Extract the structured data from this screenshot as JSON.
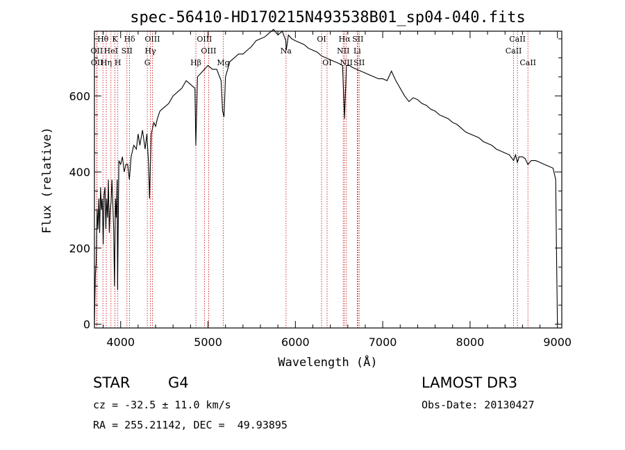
{
  "chart_data": {
    "type": "line",
    "title": "spec-56410-HD170215N493538B01_sp04-040.fits",
    "xlabel": "Wavelength (Å)",
    "ylabel": "Flux (relative)",
    "xlim": [
      3700,
      9050
    ],
    "ylim": [
      -10,
      770
    ],
    "xticks": [
      4000,
      5000,
      6000,
      7000,
      8000,
      9000
    ],
    "yticks": [
      0,
      200,
      400,
      600
    ],
    "series": [
      {
        "name": "spectrum",
        "points": [
          [
            3700,
            0
          ],
          [
            3710,
            130
          ],
          [
            3720,
            160
          ],
          [
            3730,
            300
          ],
          [
            3740,
            250
          ],
          [
            3750,
            330
          ],
          [
            3760,
            240
          ],
          [
            3770,
            360
          ],
          [
            3780,
            300
          ],
          [
            3790,
            330
          ],
          [
            3800,
            210
          ],
          [
            3810,
            340
          ],
          [
            3820,
            360
          ],
          [
            3830,
            250
          ],
          [
            3840,
            330
          ],
          [
            3850,
            280
          ],
          [
            3860,
            380
          ],
          [
            3870,
            240
          ],
          [
            3880,
            300
          ],
          [
            3890,
            320
          ],
          [
            3900,
            380
          ],
          [
            3910,
            320
          ],
          [
            3920,
            250
          ],
          [
            3930,
            100
          ],
          [
            3940,
            330
          ],
          [
            3950,
            280
          ],
          [
            3960,
            380
          ],
          [
            3965,
            90
          ],
          [
            3980,
            430
          ],
          [
            4000,
            420
          ],
          [
            4020,
            440
          ],
          [
            4040,
            400
          ],
          [
            4060,
            420
          ],
          [
            4080,
            420
          ],
          [
            4100,
            380
          ],
          [
            4120,
            440
          ],
          [
            4150,
            470
          ],
          [
            4180,
            460
          ],
          [
            4200,
            500
          ],
          [
            4220,
            470
          ],
          [
            4250,
            510
          ],
          [
            4280,
            460
          ],
          [
            4300,
            500
          ],
          [
            4320,
            420
          ],
          [
            4330,
            330
          ],
          [
            4350,
            500
          ],
          [
            4380,
            530
          ],
          [
            4400,
            520
          ],
          [
            4420,
            540
          ],
          [
            4450,
            560
          ],
          [
            4500,
            570
          ],
          [
            4550,
            580
          ],
          [
            4600,
            600
          ],
          [
            4650,
            610
          ],
          [
            4700,
            620
          ],
          [
            4750,
            640
          ],
          [
            4800,
            630
          ],
          [
            4850,
            620
          ],
          [
            4861,
            470
          ],
          [
            4880,
            650
          ],
          [
            4920,
            660
          ],
          [
            4960,
            670
          ],
          [
            5000,
            680
          ],
          [
            5050,
            670
          ],
          [
            5100,
            670
          ],
          [
            5150,
            640
          ],
          [
            5167,
            560
          ],
          [
            5183,
            545
          ],
          [
            5200,
            650
          ],
          [
            5250,
            690
          ],
          [
            5300,
            700
          ],
          [
            5350,
            710
          ],
          [
            5400,
            710
          ],
          [
            5450,
            720
          ],
          [
            5500,
            730
          ],
          [
            5550,
            745
          ],
          [
            5600,
            750
          ],
          [
            5650,
            755
          ],
          [
            5700,
            765
          ],
          [
            5750,
            775
          ],
          [
            5800,
            760
          ],
          [
            5850,
            770
          ],
          [
            5890,
            745
          ],
          [
            5896,
            720
          ],
          [
            5920,
            760
          ],
          [
            5960,
            750
          ],
          [
            6000,
            745
          ],
          [
            6050,
            740
          ],
          [
            6100,
            735
          ],
          [
            6150,
            725
          ],
          [
            6200,
            720
          ],
          [
            6250,
            715
          ],
          [
            6300,
            705
          ],
          [
            6350,
            700
          ],
          [
            6400,
            695
          ],
          [
            6450,
            690
          ],
          [
            6500,
            685
          ],
          [
            6540,
            680
          ],
          [
            6563,
            540
          ],
          [
            6585,
            680
          ],
          [
            6620,
            680
          ],
          [
            6650,
            675
          ],
          [
            6700,
            670
          ],
          [
            6750,
            665
          ],
          [
            6800,
            660
          ],
          [
            6850,
            655
          ],
          [
            6900,
            650
          ],
          [
            6950,
            645
          ],
          [
            7000,
            645
          ],
          [
            7050,
            640
          ],
          [
            7100,
            665
          ],
          [
            7150,
            640
          ],
          [
            7200,
            620
          ],
          [
            7250,
            600
          ],
          [
            7300,
            585
          ],
          [
            7350,
            595
          ],
          [
            7400,
            590
          ],
          [
            7450,
            580
          ],
          [
            7500,
            575
          ],
          [
            7550,
            565
          ],
          [
            7600,
            560
          ],
          [
            7650,
            550
          ],
          [
            7700,
            545
          ],
          [
            7750,
            540
          ],
          [
            7800,
            530
          ],
          [
            7850,
            525
          ],
          [
            7900,
            515
          ],
          [
            7950,
            505
          ],
          [
            8000,
            500
          ],
          [
            8050,
            495
          ],
          [
            8100,
            490
          ],
          [
            8150,
            480
          ],
          [
            8200,
            475
          ],
          [
            8250,
            470
          ],
          [
            8300,
            460
          ],
          [
            8350,
            455
          ],
          [
            8400,
            450
          ],
          [
            8450,
            445
          ],
          [
            8498,
            430
          ],
          [
            8520,
            445
          ],
          [
            8542,
            425
          ],
          [
            8560,
            440
          ],
          [
            8600,
            440
          ],
          [
            8630,
            435
          ],
          [
            8662,
            420
          ],
          [
            8700,
            430
          ],
          [
            8750,
            430
          ],
          [
            8800,
            425
          ],
          [
            8850,
            420
          ],
          [
            8900,
            415
          ],
          [
            8950,
            410
          ],
          [
            8980,
            380
          ],
          [
            8990,
            170
          ],
          [
            9000,
            0
          ]
        ]
      }
    ],
    "line_markers": [
      {
        "label": "Hθ",
        "wavelength": 3797,
        "row": 0
      },
      {
        "label": "K",
        "wavelength": 3934,
        "row": 0
      },
      {
        "label": "Hδ",
        "wavelength": 4102,
        "row": 0
      },
      {
        "label": "OIII",
        "wavelength": 4363,
        "row": 0
      },
      {
        "label": "OIII",
        "wavelength": 4959,
        "row": 0
      },
      {
        "label": "OI",
        "wavelength": 6300,
        "row": 0
      },
      {
        "label": "Hα",
        "wavelength": 6563,
        "row": 0
      },
      {
        "label": "SII",
        "wavelength": 6716,
        "row": 0
      },
      {
        "label": "CaII",
        "wavelength": 8542,
        "row": 0
      },
      {
        "label": "OII",
        "wavelength": 3727,
        "row": 1
      },
      {
        "label": "HeI",
        "wavelength": 3889,
        "row": 1
      },
      {
        "label": "SII",
        "wavelength": 4072,
        "row": 1
      },
      {
        "label": "Hγ",
        "wavelength": 4340,
        "row": 1
      },
      {
        "label": "OIII",
        "wavelength": 5007,
        "row": 1
      },
      {
        "label": "Na",
        "wavelength": 5893,
        "row": 1
      },
      {
        "label": "NII",
        "wavelength": 6548,
        "row": 1
      },
      {
        "label": "Li",
        "wavelength": 6708,
        "row": 1
      },
      {
        "label": "CaII",
        "wavelength": 8498,
        "row": 1
      },
      {
        "label": "OII",
        "wavelength": 3729,
        "row": 2
      },
      {
        "label": "Hη",
        "wavelength": 3835,
        "row": 2
      },
      {
        "label": "H",
        "wavelength": 3968,
        "row": 2
      },
      {
        "label": "G",
        "wavelength": 4305,
        "row": 2
      },
      {
        "label": "Hβ",
        "wavelength": 4861,
        "row": 2
      },
      {
        "label": "Mg",
        "wavelength": 5175,
        "row": 2
      },
      {
        "label": "OI",
        "wavelength": 6363,
        "row": 2
      },
      {
        "label": "NII",
        "wavelength": 6584,
        "row": 2
      },
      {
        "label": "SII",
        "wavelength": 6731,
        "row": 2
      },
      {
        "label": "CaII",
        "wavelength": 8662,
        "row": 2
      }
    ]
  },
  "info": {
    "class": "STAR",
    "subclass": "G4",
    "survey": "LAMOST DR3",
    "cz": "cz = -32.5 ± 11.0 km/s",
    "obs_date": "Obs-Date: 20130427",
    "coords": "RA = 255.21142, DEC =  49.93895"
  },
  "colors": {
    "line": "#000000",
    "marker": "#c00000",
    "axis": "#000000"
  }
}
